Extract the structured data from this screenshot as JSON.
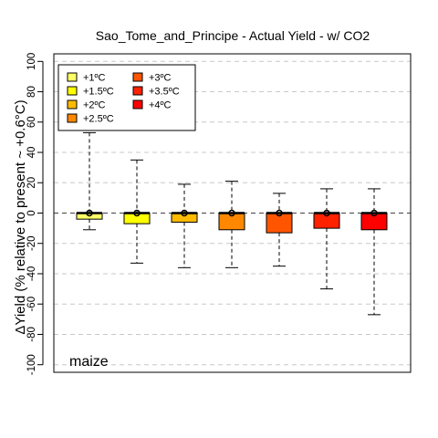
{
  "chart_data": {
    "type": "boxplot",
    "title": "Sao_Tome_and_Principe - Actual Yield - w/ CO2",
    "ylabel": "ΔYield (% relative to present ~ +0.6°C)",
    "xlabel": "",
    "ylim": [
      -105,
      105
    ],
    "yticks": [
      100,
      80,
      60,
      40,
      20,
      0,
      -20,
      -40,
      -60,
      -80,
      -100
    ],
    "grid": true,
    "legend_position": "top-left",
    "crop_label": "maize",
    "series": [
      {
        "name": "+1ºC",
        "color": "#ffff66",
        "whisker_low": -11,
        "q1": -4,
        "median": 0,
        "q3": 0,
        "whisker_high": 53,
        "mean": 0
      },
      {
        "name": "+1.5ºC",
        "color": "#ffff00",
        "whisker_low": -33,
        "q1": -7,
        "median": 0,
        "q3": 0,
        "whisker_high": 35,
        "mean": 0
      },
      {
        "name": "+2ºC",
        "color": "#ffbb00",
        "whisker_low": -36,
        "q1": -6,
        "median": 0,
        "q3": 0,
        "whisker_high": 19,
        "mean": 0
      },
      {
        "name": "+2.5ºC",
        "color": "#ff8800",
        "whisker_low": -36,
        "q1": -11,
        "median": 0,
        "q3": 0,
        "whisker_high": 21,
        "mean": 0
      },
      {
        "name": "+3ºC",
        "color": "#ff5500",
        "whisker_low": -35,
        "q1": -13,
        "median": 0,
        "q3": 0,
        "whisker_high": 13,
        "mean": 0
      },
      {
        "name": "+3.5ºC",
        "color": "#ff2200",
        "whisker_low": -50,
        "q1": -10,
        "median": 0,
        "q3": 0,
        "whisker_high": 16,
        "mean": 0
      },
      {
        "name": "+4ºC",
        "color": "#ff0000",
        "whisker_low": -67,
        "q1": -11,
        "median": 0,
        "q3": 0,
        "whisker_high": 16,
        "mean": 0
      }
    ]
  }
}
